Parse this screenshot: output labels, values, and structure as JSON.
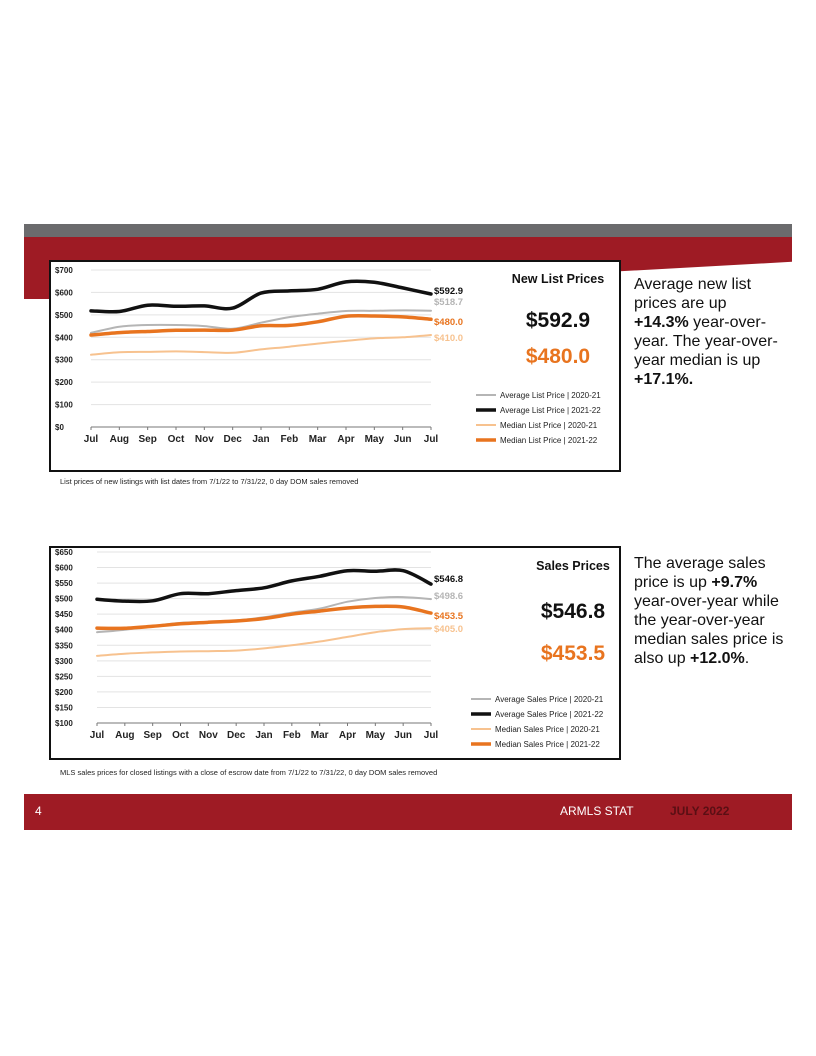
{
  "side_texts": {
    "list": {
      "intro": "Average new list prices are up",
      "avg_change": "+14.3%",
      "mid": "year-over-year. The year-over-year median is up",
      "median_change": "+17.1%."
    },
    "sales": {
      "intro": "The average sales price is up",
      "avg_change": "+9.7%",
      "mid": "year-over-year while the year-over-year median sales price is also up",
      "median_change": "+12.0%",
      "end": "."
    }
  },
  "footnotes": {
    "list": "List prices of new listings with list dates from 7/1/22 to 7/31/22, 0 day DOM sales removed",
    "sales": "MLS sales prices for closed listings with a close of escrow date from 7/1/22 to 7/31/22, 0 day DOM sales removed"
  },
  "footer": {
    "page_number": "4",
    "label": "ARMLS STAT",
    "date": "JULY 2022"
  },
  "colors": {
    "avg_prev": "#b5b5b5",
    "avg_curr": "#111111",
    "med_prev": "#f7c28f",
    "med_curr": "#e8741f",
    "brand_red": "#9e1b24"
  },
  "chart_data": [
    {
      "type": "line",
      "title": "New List Prices",
      "highlight_avg": "$592.9",
      "highlight_median": "$480.0",
      "categories": [
        "Jul",
        "Aug",
        "Sep",
        "Oct",
        "Nov",
        "Dec",
        "Jan",
        "Feb",
        "Mar",
        "Apr",
        "May",
        "Jun",
        "Jul"
      ],
      "yticks": [
        "$0",
        "$100",
        "$200",
        "$300",
        "$400",
        "$500",
        "$600",
        "$700"
      ],
      "ylim": [
        0,
        700
      ],
      "legend_position": "right",
      "grid": true,
      "series": [
        {
          "name": "Average List Price | 2020-21",
          "color": "#b5b5b5",
          "width": 2,
          "values": [
            420,
            447,
            455,
            455,
            450,
            438,
            465,
            490,
            505,
            517,
            518,
            520,
            518.7
          ],
          "end_label": "$518.7"
        },
        {
          "name": "Average List Price | 2021-22",
          "color": "#111111",
          "width": 3.5,
          "values": [
            518,
            515,
            543,
            538,
            540,
            530,
            597,
            607,
            614,
            647,
            645,
            620,
            592.9
          ],
          "end_label": "$592.9"
        },
        {
          "name": "Median List Price | 2020-21",
          "color": "#f7c28f",
          "width": 2,
          "values": [
            322,
            333,
            335,
            337,
            334,
            331,
            346,
            358,
            372,
            384,
            395,
            400,
            410.0
          ],
          "end_label": "$410.0"
        },
        {
          "name": "Median List Price | 2021-22",
          "color": "#e8741f",
          "width": 3.5,
          "values": [
            410,
            421,
            426,
            431,
            432,
            432,
            451,
            453,
            469,
            494,
            495,
            491,
            480.0
          ],
          "end_label": "$480.0"
        }
      ]
    },
    {
      "type": "line",
      "title": "Sales Prices",
      "highlight_avg": "$546.8",
      "highlight_median": "$453.5",
      "categories": [
        "Jul",
        "Aug",
        "Sep",
        "Oct",
        "Nov",
        "Dec",
        "Jan",
        "Feb",
        "Mar",
        "Apr",
        "May",
        "Jun",
        "Jul"
      ],
      "yticks": [
        "$100",
        "$150",
        "$200",
        "$250",
        "$300",
        "$350",
        "$400",
        "$450",
        "$500",
        "$550",
        "$600",
        "$650"
      ],
      "ylim": [
        100,
        650
      ],
      "legend_position": "bottom-right",
      "grid": true,
      "series": [
        {
          "name": "Average Sales Price | 2020-21",
          "color": "#b5b5b5",
          "width": 2,
          "values": [
            392,
            400,
            412,
            422,
            425,
            430,
            440,
            455,
            468,
            490,
            502,
            505,
            498.6
          ],
          "end_label": "$498.6"
        },
        {
          "name": "Average Sales Price | 2021-22",
          "color": "#111111",
          "width": 3.5,
          "values": [
            498,
            492,
            493,
            516,
            516,
            526,
            535,
            557,
            572,
            590,
            588,
            590,
            546.8
          ],
          "end_label": "$546.8"
        },
        {
          "name": "Median Sales Price | 2020-21",
          "color": "#f7c28f",
          "width": 2,
          "values": [
            316,
            323,
            327,
            330,
            331,
            333,
            340,
            350,
            362,
            377,
            392,
            402,
            405.0
          ],
          "end_label": "$405.0"
        },
        {
          "name": "Median Sales Price | 2021-22",
          "color": "#e8741f",
          "width": 3.5,
          "values": [
            405,
            405,
            411,
            419,
            424,
            428,
            436,
            450,
            460,
            470,
            475,
            473,
            453.5
          ],
          "end_label": "$453.5"
        }
      ]
    }
  ]
}
